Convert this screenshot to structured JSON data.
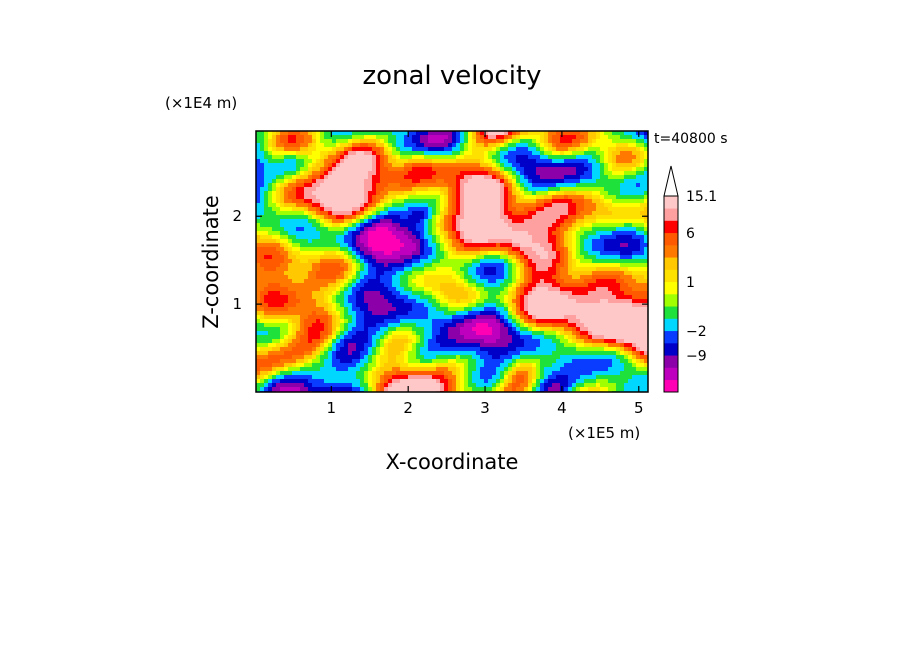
{
  "chart_data": {
    "type": "heatmap",
    "title": "zonal velocity",
    "xlabel": "X-coordinate",
    "ylabel": "Z-coordinate",
    "x_unit": "(×1E5 m)",
    "y_unit": "(×1E4 m)",
    "time_label": "t=40800 s",
    "xlim": [
      0.02,
      5.12
    ],
    "ylim": [
      0.0,
      2.97
    ],
    "x_ticks": [
      1,
      2,
      3,
      4,
      5
    ],
    "y_ticks": [
      1,
      2
    ],
    "grid": false,
    "colorbar": {
      "position": "right",
      "extend": "max",
      "levels": [
        {
          "color": "#ff00b4"
        },
        {
          "color": "#be00be"
        },
        {
          "color": "#8c00aa",
          "label": "−9"
        },
        {
          "color": "#0000c8"
        },
        {
          "color": "#0a3cff",
          "label": "−2"
        },
        {
          "color": "#00d7ff"
        },
        {
          "color": "#1ee13c"
        },
        {
          "color": "#a0ff00"
        },
        {
          "color": "#ffff00",
          "label": "1"
        },
        {
          "color": "#ffe100"
        },
        {
          "color": "#ffc800"
        },
        {
          "color": "#ff7800"
        },
        {
          "color": "#ff5a00",
          "label": "6"
        },
        {
          "color": "#ff0000"
        },
        {
          "color": "#ffa0a0"
        },
        {
          "color": "#ffc8c8",
          "label": "15.1"
        }
      ]
    }
  }
}
